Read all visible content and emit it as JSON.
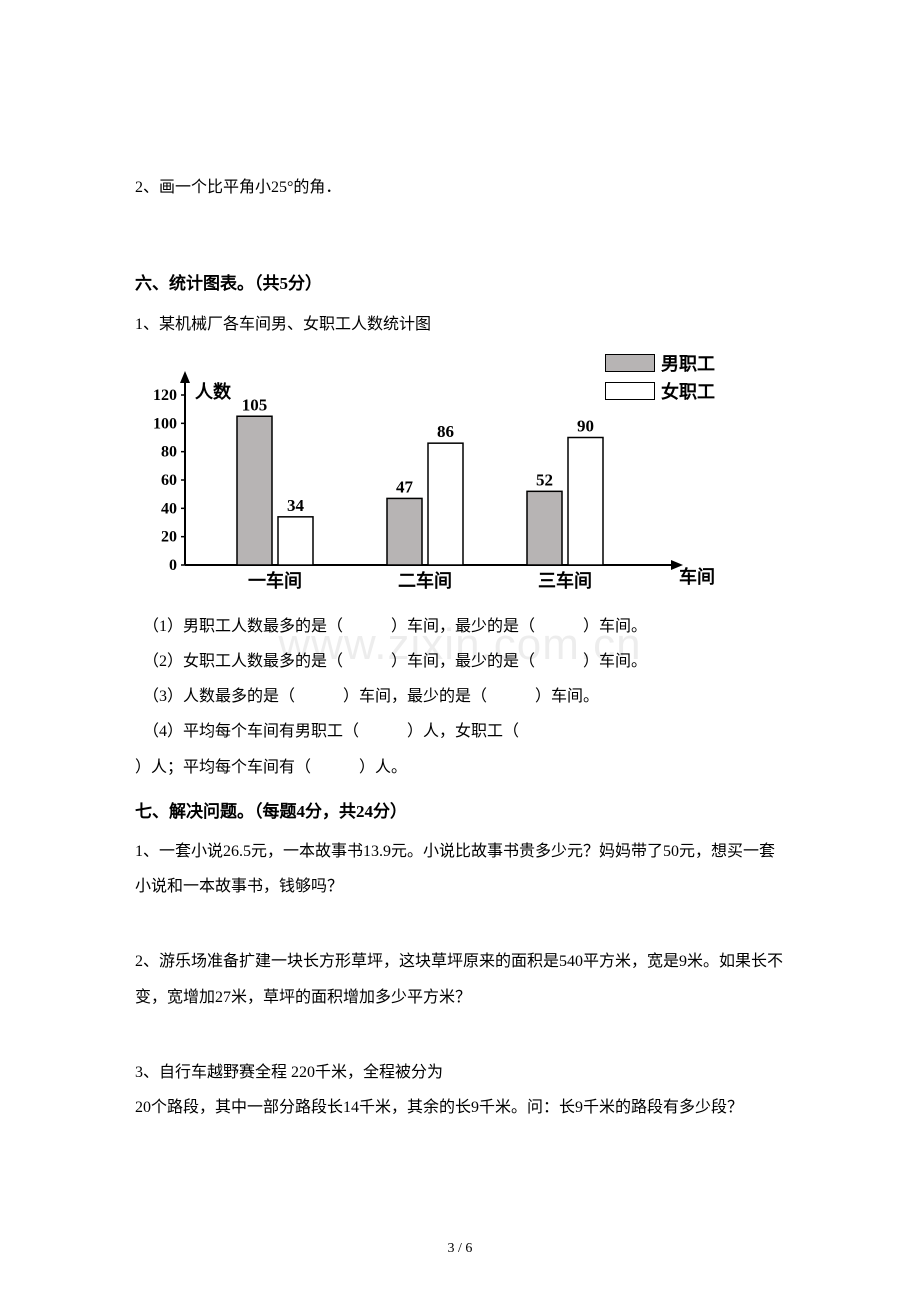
{
  "q2_angle": "2、画一个比平角小25°的角．",
  "section6": {
    "heading": "六、统计图表。（共5分）",
    "q1_intro": "1、某机械厂各车间男、女职工人数统计图",
    "chart": {
      "type": "bar",
      "y_axis_label": "人数",
      "x_axis_label": "车间",
      "y_ticks": [
        0,
        20,
        40,
        60,
        80,
        100,
        120
      ],
      "categories": [
        "一车间",
        "二车间",
        "三车间"
      ],
      "series": [
        {
          "name": "男职工",
          "color": "#b7b4b4",
          "values": [
            105,
            47,
            52
          ]
        },
        {
          "name": "女职工",
          "color": "#ffffff",
          "values": [
            34,
            86,
            90
          ]
        }
      ],
      "y_max": 120,
      "bar_border": "#000000",
      "axis_color": "#000000"
    },
    "sub_questions": [
      "（1）男职工人数最多的是（　　　）车间，最少的是（　　　）车间。",
      "（2）女职工人数最多的是（　　　）车间，最少的是（　　　）车间。",
      "（3）人数最多的是（　　　）车间，最少的是（　　　）车间。",
      "（4）平均每个车间有男职工（　　　）人，女职工（",
      "）人；平均每个车间有（　　　）人。"
    ]
  },
  "section7": {
    "heading": "七、解决问题。（每题4分，共24分）",
    "problems": [
      "1、一套小说26.5元，一本故事书13.9元。小说比故事书贵多少元？妈妈带了50元，想买一套小说和一本故事书，钱够吗？",
      "2、游乐场准备扩建一块长方形草坪，这块草坪原来的面积是540平方米，宽是9米。如果长不变，宽增加27米，草坪的面积增加多少平方米？",
      "3、自行车越野赛全程 220千米，全程被分为",
      "20个路段，其中一部分路段长14千米，其余的长9千米。问：长9千米的路段有多少段？"
    ]
  },
  "watermark": "www.zixin.com.cn",
  "page_number": "3 / 6"
}
